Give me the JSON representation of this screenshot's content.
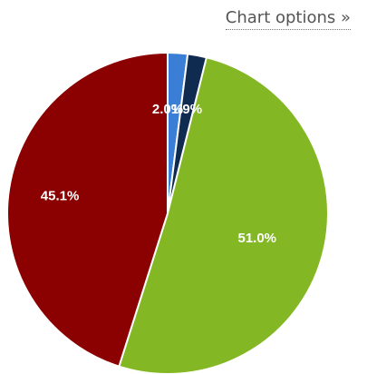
{
  "header": {
    "title_fragment": "",
    "chart_options_label": "Chart options »"
  },
  "chart_data": {
    "type": "pie",
    "title": "",
    "slices": [
      {
        "value": 2.0,
        "label": "2.0%",
        "color": "#3b7ed6"
      },
      {
        "value": 1.9,
        "label": "1.9%",
        "color": "#0f2b4f"
      },
      {
        "value": 51.0,
        "label": "51.0%",
        "color": "#83b724"
      },
      {
        "value": 45.1,
        "label": "45.1%",
        "color": "#8b0000"
      }
    ],
    "legend": "none"
  }
}
